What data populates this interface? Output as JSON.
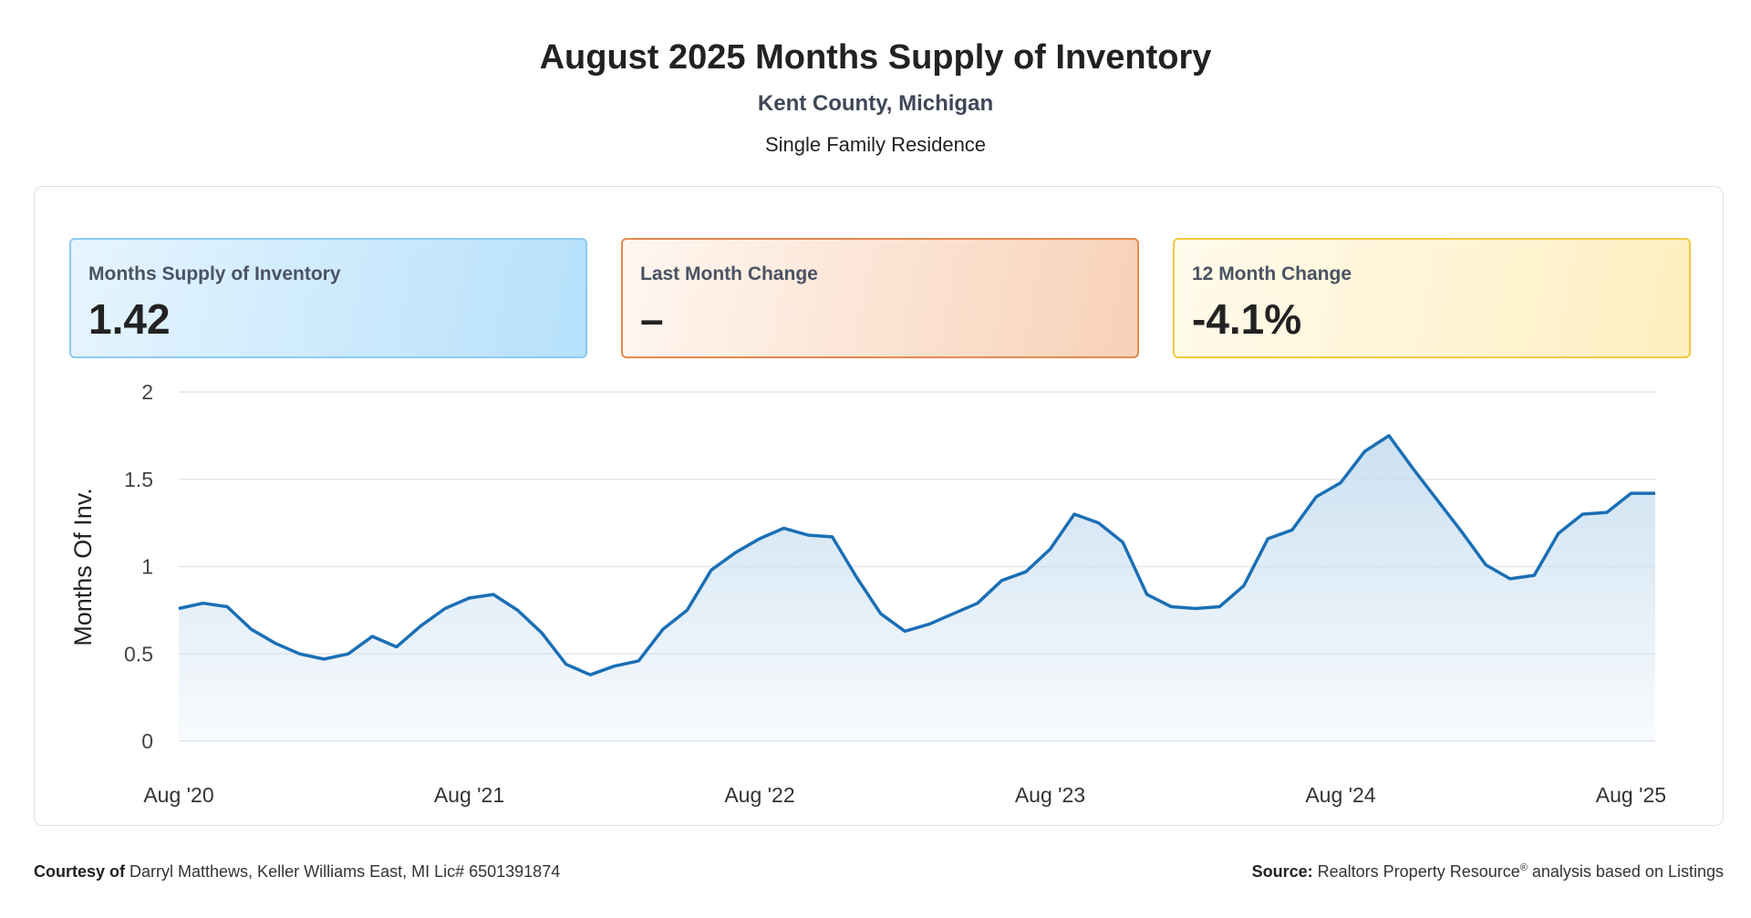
{
  "header": {
    "title": "August 2025 Months Supply of Inventory",
    "subtitle": "Kent County, Michigan",
    "property_type": "Single Family Residence"
  },
  "cards": {
    "supply": {
      "label": "Months Supply of Inventory",
      "value": "1.42",
      "color": "#8ccaf1"
    },
    "last_month": {
      "label": "Last Month Change",
      "value": "–",
      "color": "#e38a4e"
    },
    "twelve_month": {
      "label": "12 Month Change",
      "value": "-4.1%",
      "color": "#f2c83f"
    }
  },
  "footer": {
    "courtesy_label": "Courtesy of",
    "courtesy_text": "Darryl Matthews, Keller Williams East, MI Lic# 6501391874",
    "source_label": "Source:",
    "source_text_1": "Realtors Property Resource",
    "source_mark": "®",
    "source_text_2": "analysis based on Listings"
  },
  "chart_data": {
    "type": "area",
    "title": "",
    "xlabel": "",
    "ylabel": "Months Of Inv.",
    "ylim": [
      0,
      2
    ],
    "yticks": [
      "0",
      "0.5",
      "1",
      "1.5",
      "2"
    ],
    "xticks": [
      "Aug '20",
      "Aug '21",
      "Aug '22",
      "Aug '23",
      "Aug '24",
      "Aug '25"
    ],
    "grid": true,
    "line_color": "#1a6fb5",
    "fill_color": "#c9dff0",
    "series": [
      {
        "values": [
          0.76,
          0.79,
          0.77,
          0.64,
          0.56,
          0.5,
          0.47,
          0.5,
          0.6,
          0.54,
          0.66,
          0.76,
          0.82,
          0.84,
          0.75,
          0.62,
          0.44,
          0.38,
          0.43,
          0.46,
          0.64,
          0.75,
          0.98,
          1.08,
          1.16,
          1.22,
          1.18,
          1.17,
          0.94,
          0.73,
          0.63,
          0.67,
          0.73,
          0.79,
          0.92,
          0.97,
          1.1,
          1.3,
          1.25,
          1.14,
          0.84,
          0.77,
          0.76,
          0.77,
          0.89,
          1.16,
          1.21,
          1.4,
          1.48,
          1.66,
          1.75,
          1.56,
          1.38,
          1.2,
          1.01,
          0.93,
          0.95,
          1.19,
          1.3,
          1.31,
          1.42,
          1.42
        ]
      }
    ]
  }
}
